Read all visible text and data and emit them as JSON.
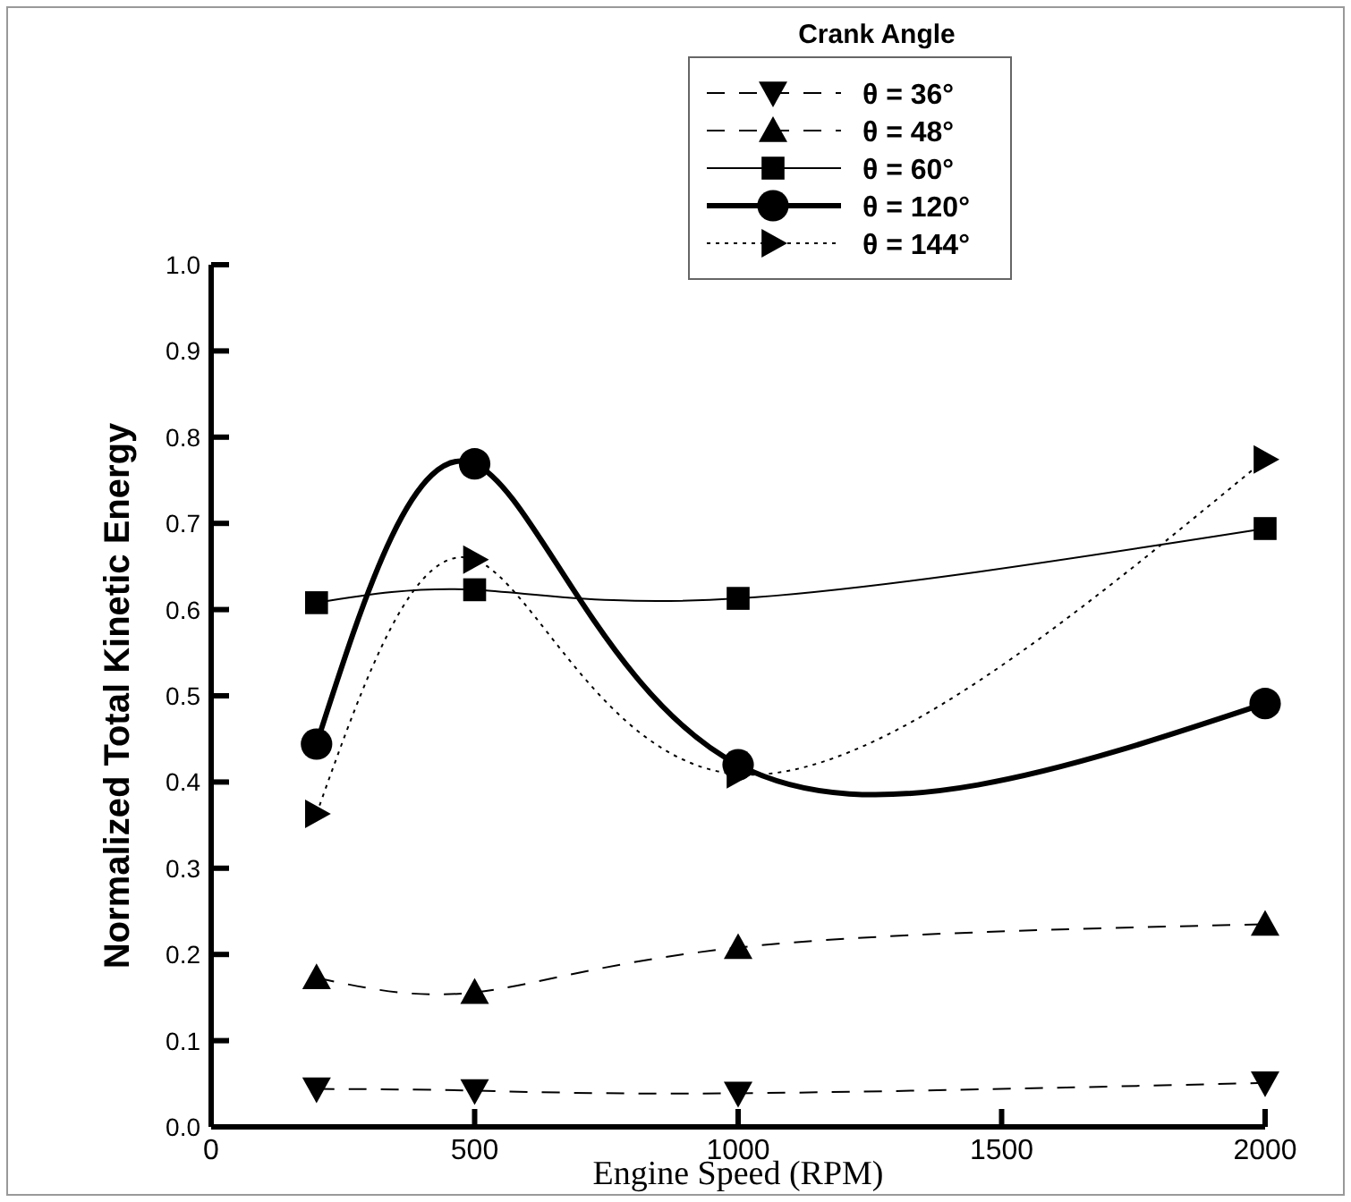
{
  "chart_data": {
    "type": "line",
    "legend_title": "Crank Angle",
    "xlabel": "Engine Speed (RPM)",
    "ylabel": "Normalized Total Kinetic Energy",
    "x": [
      200,
      500,
      1000,
      2000
    ],
    "xlim": [
      0,
      2000
    ],
    "xticks": [
      0,
      500,
      1000,
      1500,
      2000
    ],
    "ylim": [
      0,
      1
    ],
    "yticks": [
      {
        "value": 0,
        "label": "0.0"
      },
      {
        "value": 0.1,
        "label": "0.1"
      },
      {
        "value": 0.2,
        "label": "0.2"
      },
      {
        "value": 0.3,
        "label": "0.3"
      },
      {
        "value": 0.4,
        "label": "0.4"
      },
      {
        "value": 0.5,
        "label": "0.5"
      },
      {
        "value": 0.6,
        "label": "0.6"
      },
      {
        "value": 0.7,
        "label": "0.7"
      },
      {
        "value": 0.8,
        "label": "0.8"
      },
      {
        "value": 0.9,
        "label": "0.9"
      },
      {
        "value": 1,
        "label": "1.0"
      }
    ],
    "legend": "top right",
    "series": [
      {
        "name": "θ = 36°",
        "color": "#000000",
        "marker": "triangle-down",
        "line_style": "dashed",
        "values": [
          0.044,
          0.042,
          0.039,
          0.051
        ]
      },
      {
        "name": "θ = 48°",
        "color": "#000000",
        "marker": "triangle",
        "line_style": "dashed",
        "values": [
          0.173,
          0.156,
          0.208,
          0.235
        ]
      },
      {
        "name": "θ = 60°",
        "color": "#000000",
        "marker": "square",
        "line_style": "solid",
        "values": [
          0.608,
          0.623,
          0.613,
          0.694
        ]
      },
      {
        "name": "θ = 120°",
        "color": "#000000",
        "marker": "circle",
        "line_style": "solid",
        "values": [
          0.444,
          0.769,
          0.42,
          0.491
        ]
      },
      {
        "name": "θ = 144°",
        "color": "#000000",
        "marker": "triangle-right",
        "line_style": "dotted",
        "values": [
          0.363,
          0.658,
          0.409,
          0.774
        ]
      }
    ]
  }
}
